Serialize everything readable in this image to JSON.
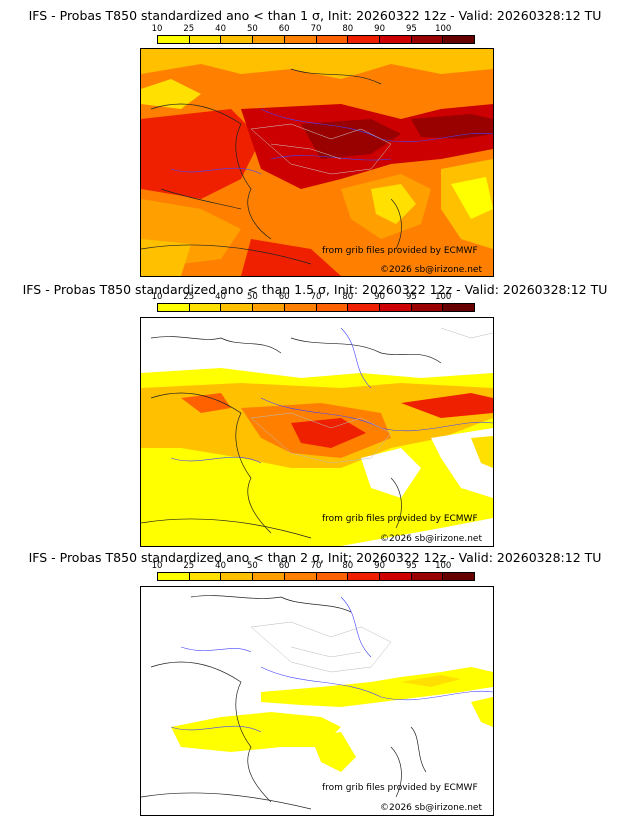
{
  "colorbar": {
    "labels": [
      "10",
      "25",
      "40",
      "50",
      "60",
      "70",
      "80",
      "90",
      "95",
      "100"
    ],
    "colors": [
      "#ffff00",
      "#ffe000",
      "#ffc000",
      "#ffa000",
      "#ff8000",
      "#ff6000",
      "#ee2000",
      "#cc0000",
      "#990000",
      "#660000"
    ]
  },
  "panels": [
    {
      "title": "IFS - Probas T850  standardized ano < than 1 σ, Init: 20260322 12z - Valid: 20260328:12 TU",
      "credit": "from grib files provided by ECMWF",
      "copyright": "©2026 sb@irizone.net"
    },
    {
      "title": "IFS - Probas T850  standardized ano < than 1.5 σ, Init: 20260322 12z - Valid: 20260328:12 TU",
      "credit": "from grib files provided by ECMWF",
      "copyright": "©2026 sb@irizone.net"
    },
    {
      "title": "IFS - Probas T850  standardized ano < than 2 σ, Init: 20260322 12z - Valid: 20260328:12 TU",
      "credit": "from grib files provided by ECMWF",
      "copyright": "©2026 sb@irizone.net"
    }
  ]
}
